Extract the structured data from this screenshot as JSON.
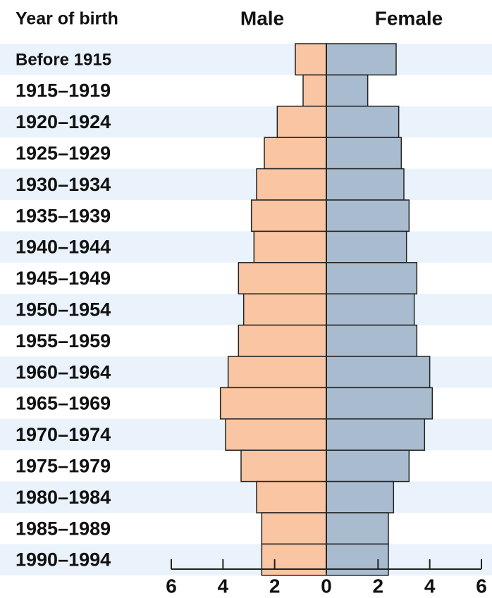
{
  "chart_data": {
    "type": "pyramid",
    "category_label": "Year of birth",
    "categories": [
      "Before 1915",
      "1915–1919",
      "1920–1924",
      "1925–1929",
      "1930–1934",
      "1935–1939",
      "1940–1944",
      "1945–1949",
      "1950–1954",
      "1955–1959",
      "1960–1964",
      "1965–1969",
      "1970–1974",
      "1975–1979",
      "1980–1984",
      "1985–1989",
      "1990–1994"
    ],
    "series": [
      {
        "name": "Male",
        "color": "#f9c5a3",
        "values": [
          -1.2,
          -0.9,
          -1.9,
          -2.4,
          -2.7,
          -2.9,
          -2.8,
          -3.4,
          -3.2,
          -3.4,
          -3.8,
          -4.1,
          -3.9,
          -3.3,
          -2.7,
          -2.5,
          -2.5
        ]
      },
      {
        "name": "Female",
        "color": "#a9bccf",
        "values": [
          2.7,
          1.6,
          2.8,
          2.9,
          3.0,
          3.2,
          3.1,
          3.5,
          3.4,
          3.5,
          4.0,
          4.1,
          3.8,
          3.2,
          2.6,
          2.4,
          2.4
        ]
      }
    ],
    "xlim": [
      -6,
      6
    ],
    "xticks": [
      {
        "value": -6,
        "label": "6"
      },
      {
        "value": -4,
        "label": "4"
      },
      {
        "value": -2,
        "label": "2"
      },
      0,
      2,
      4,
      6
    ],
    "band_color": "#eaf3fb"
  }
}
